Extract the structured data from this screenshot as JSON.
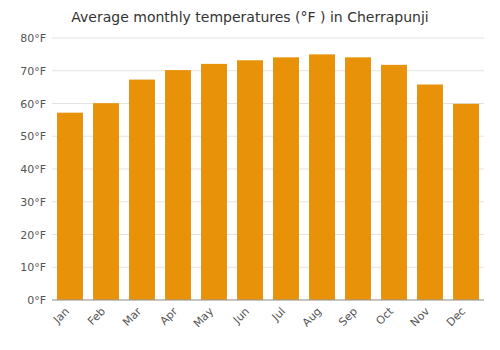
{
  "chart_data": {
    "type": "bar",
    "title": "Average monthly temperatures (°F ) in Cherrapunji",
    "categories": [
      "Jan",
      "Feb",
      "Mar",
      "Apr",
      "May",
      "Jun",
      "Jul",
      "Aug",
      "Sep",
      "Oct",
      "Nov",
      "Dec"
    ],
    "values": [
      57.2,
      60.1,
      67.3,
      70.2,
      72.1,
      73.2,
      74.1,
      75.0,
      74.1,
      71.8,
      65.8,
      59.9
    ],
    "color": "#E8920A",
    "ylim": [
      0,
      80
    ],
    "yticks": [
      {
        "value": 0,
        "label": "0°F"
      },
      {
        "value": 10,
        "label": "10°F"
      },
      {
        "value": 20,
        "label": "20°F"
      },
      {
        "value": 30,
        "label": "30°F"
      },
      {
        "value": 40,
        "label": "40°F"
      },
      {
        "value": 50,
        "label": "50°F"
      },
      {
        "value": 60,
        "label": "60°F"
      },
      {
        "value": 70,
        "label": "70°F"
      },
      {
        "value": 80,
        "label": "80°F"
      }
    ],
    "grid": true
  }
}
